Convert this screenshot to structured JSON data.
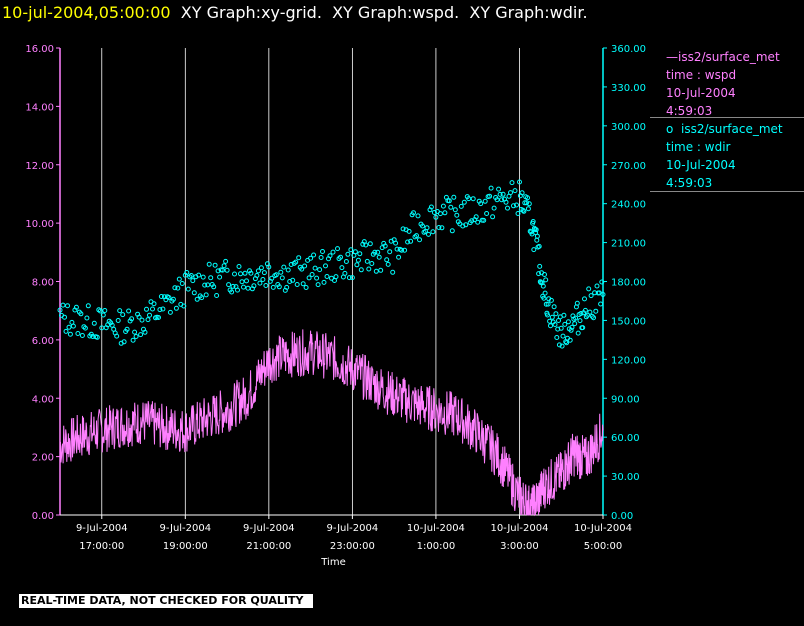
{
  "header": {
    "timestamp": "10-jul-2004,05:00:00",
    "graphs": [
      "XY Graph:xy-grid.",
      "XY Graph:wspd.",
      "XY Graph:wdir."
    ]
  },
  "legend": {
    "series1": {
      "marker": "—",
      "name": "iss2/surface_met",
      "var": "time : wspd",
      "date": "10-Jul-2004",
      "time": "4:59:03"
    },
    "series2": {
      "marker": "o",
      "name": "iss2/surface_met",
      "var": "time : wdir",
      "date": "10-Jul-2004",
      "time": "4:59:03"
    }
  },
  "footer": {
    "quality": "REAL-TIME DATA, NOT CHECKED FOR QUALITY"
  },
  "colors": {
    "wspd": "#ff80ff",
    "wdir": "#00ffff",
    "grid": "#ffffff",
    "background": "#000000"
  },
  "chart_data": {
    "type": "line",
    "xlabel": "Time",
    "x_ticks": [
      {
        "date": "9-Jul-2004",
        "time": "17:00:00",
        "hour": 17
      },
      {
        "date": "9-Jul-2004",
        "time": "19:00:00",
        "hour": 19
      },
      {
        "date": "9-Jul-2004",
        "time": "21:00:00",
        "hour": 21
      },
      {
        "date": "9-Jul-2004",
        "time": "23:00:00",
        "hour": 23
      },
      {
        "date": "10-Jul-2004",
        "time": "1:00:00",
        "hour": 25
      },
      {
        "date": "10-Jul-2004",
        "time": "3:00:00",
        "hour": 27
      },
      {
        "date": "10-Jul-2004",
        "time": "5:00:00",
        "hour": 29
      }
    ],
    "xlim": [
      16,
      29
    ],
    "y_left": {
      "ylim": [
        0,
        16
      ],
      "ticks": [
        "0.00",
        "2.00",
        "4.00",
        "6.00",
        "8.00",
        "10.00",
        "12.00",
        "14.00",
        "16.00"
      ]
    },
    "y_right": {
      "ylim": [
        0,
        360
      ],
      "ticks": [
        "0.00",
        "30.00",
        "60.00",
        "90.00",
        "120.00",
        "150.00",
        "180.00",
        "210.00",
        "240.00",
        "270.00",
        "300.00",
        "330.00",
        "360.00"
      ]
    },
    "series": [
      {
        "name": "wspd",
        "axis": "left",
        "style": "line",
        "points": [
          [
            16.0,
            2.4
          ],
          [
            16.5,
            2.7
          ],
          [
            17.0,
            2.9
          ],
          [
            17.5,
            3.1
          ],
          [
            18.0,
            3.2
          ],
          [
            18.5,
            3.0
          ],
          [
            19.0,
            2.9
          ],
          [
            19.5,
            3.3
          ],
          [
            20.0,
            3.6
          ],
          [
            20.5,
            4.1
          ],
          [
            21.0,
            5.3
          ],
          [
            21.5,
            5.5
          ],
          [
            22.0,
            5.6
          ],
          [
            22.5,
            5.4
          ],
          [
            23.0,
            5.0
          ],
          [
            23.5,
            4.5
          ],
          [
            24.0,
            4.1
          ],
          [
            24.5,
            3.8
          ],
          [
            25.0,
            3.6
          ],
          [
            25.5,
            3.4
          ],
          [
            26.0,
            2.8
          ],
          [
            26.5,
            2.0
          ],
          [
            27.0,
            0.6
          ],
          [
            27.3,
            0.2
          ],
          [
            27.6,
            1.0
          ],
          [
            28.0,
            1.4
          ],
          [
            28.3,
            2.1
          ],
          [
            28.6,
            1.9
          ],
          [
            29.0,
            2.9
          ]
        ]
      },
      {
        "name": "wdir",
        "axis": "right",
        "style": "points",
        "points": [
          [
            16.0,
            152
          ],
          [
            16.5,
            150
          ],
          [
            17.0,
            147
          ],
          [
            17.5,
            145
          ],
          [
            18.0,
            150
          ],
          [
            18.5,
            160
          ],
          [
            19.0,
            175
          ],
          [
            19.5,
            180
          ],
          [
            20.0,
            184
          ],
          [
            20.5,
            185
          ],
          [
            21.0,
            188
          ],
          [
            21.5,
            185
          ],
          [
            22.0,
            188
          ],
          [
            22.5,
            192
          ],
          [
            23.0,
            195
          ],
          [
            23.5,
            200
          ],
          [
            24.0,
            200
          ],
          [
            24.5,
            222
          ],
          [
            25.0,
            232
          ],
          [
            25.5,
            232
          ],
          [
            26.0,
            235
          ],
          [
            26.5,
            243
          ],
          [
            27.0,
            245
          ],
          [
            27.3,
            225
          ],
          [
            27.5,
            190
          ],
          [
            27.7,
            160
          ],
          [
            28.0,
            140
          ],
          [
            28.3,
            148
          ],
          [
            28.6,
            160
          ],
          [
            29.0,
            170
          ]
        ]
      }
    ]
  }
}
